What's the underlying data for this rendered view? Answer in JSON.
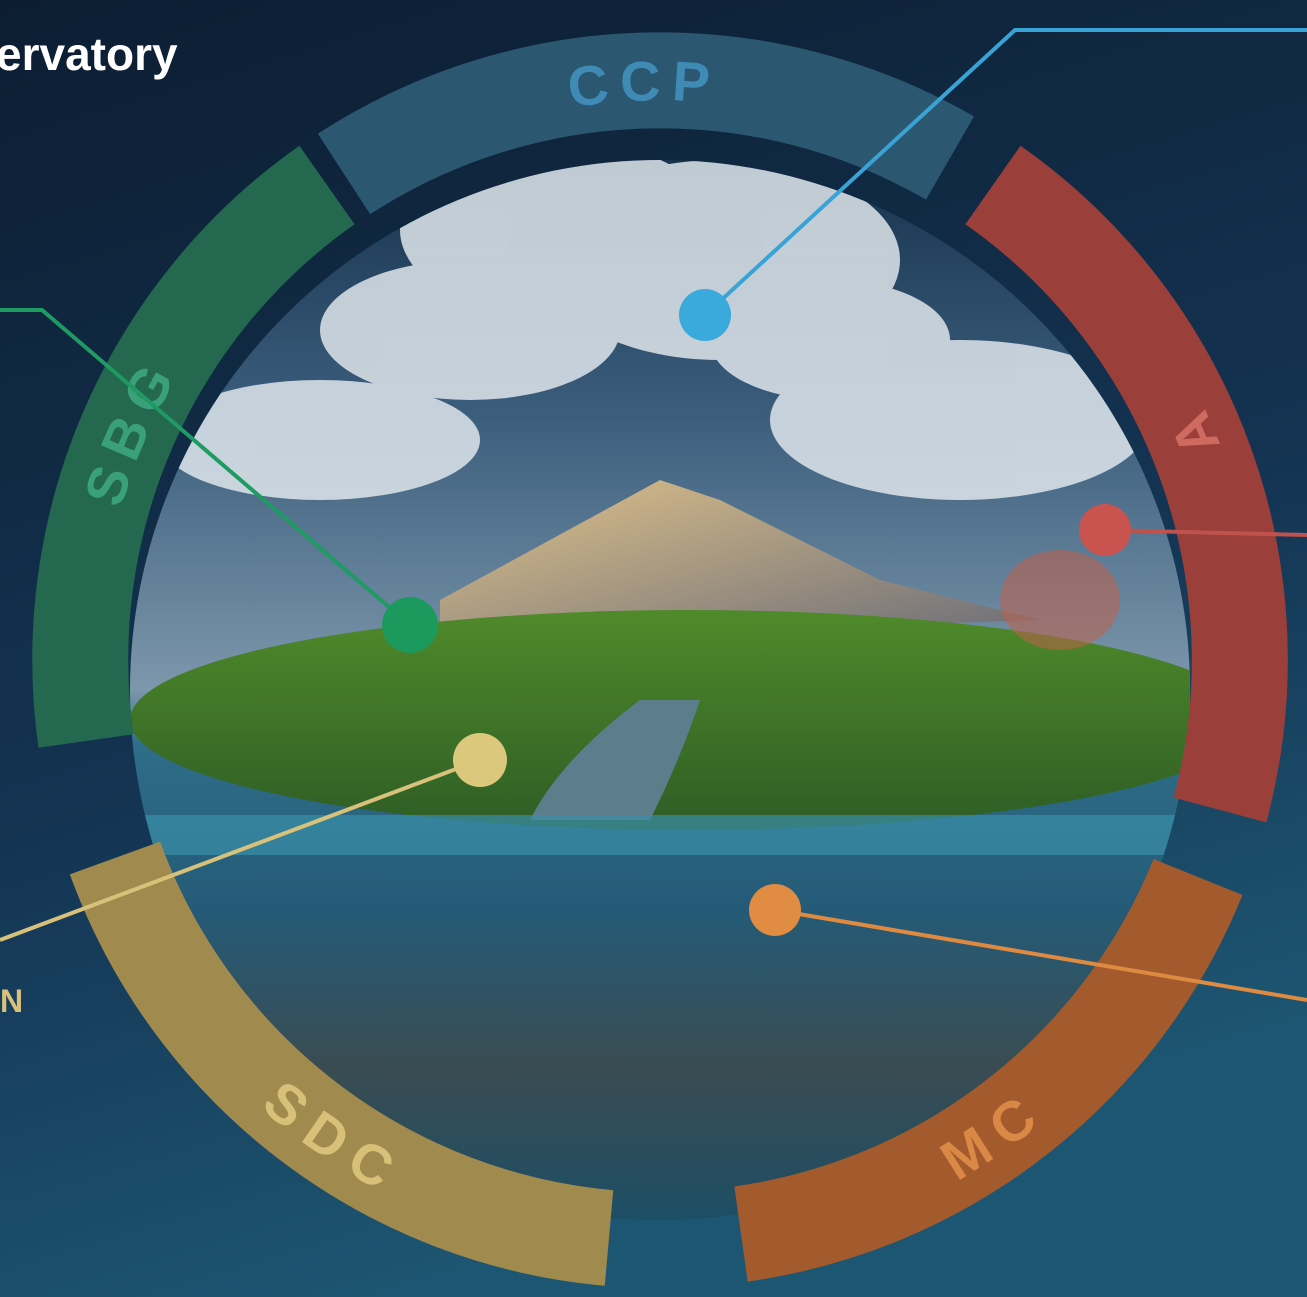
{
  "header": {
    "title": "ervatory"
  },
  "cycles": [
    {
      "label": "CCP"
    },
    {
      "label": "A"
    },
    {
      "label": "MC"
    },
    {
      "label": "SDC"
    },
    {
      "label": "SBG"
    }
  ],
  "callouts": [
    {
      "label": "N"
    }
  ]
}
